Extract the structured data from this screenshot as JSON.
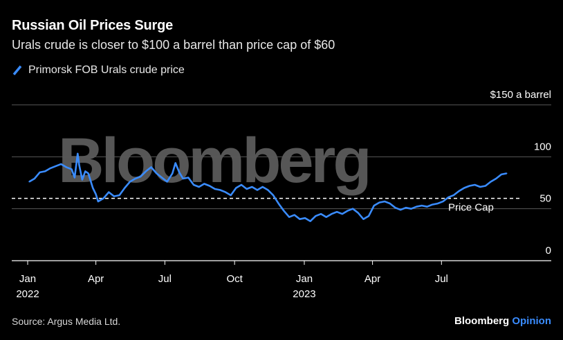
{
  "header": {
    "title": "Russian Oil Prices Surge",
    "subtitle": "Urals crude is closer to $100 a barrel than price cap of $60"
  },
  "legend": {
    "label": "Primorsk FOB Urals crude price"
  },
  "footer": {
    "source": "Source: Argus Media Ltd.",
    "brand_main": "Bloomberg",
    "brand_accent": "Opinion"
  },
  "watermark": "Bloomberg",
  "colors": {
    "series": "#3a8cff",
    "background": "#000000",
    "grid": "#5a5a5a",
    "cap_line": "#ffffff"
  },
  "chart_data": {
    "type": "line",
    "title": "Russian Oil Prices Surge",
    "subtitle": "Urals crude is closer to $100 a barrel than price cap of $60",
    "y_unit_label": "$150 a barrel",
    "ylim": [
      0,
      150
    ],
    "y_ticks": [
      0,
      50,
      100,
      150
    ],
    "y_tick_labels": [
      "0",
      "50",
      "100",
      "$150 a barrel"
    ],
    "xlim": [
      "2022-01-01",
      "2023-10-31"
    ],
    "x_ticks": [
      {
        "date": "2022-01-01",
        "label": "Jan",
        "sublabel": "2022"
      },
      {
        "date": "2022-04-01",
        "label": "Apr",
        "sublabel": ""
      },
      {
        "date": "2022-07-01",
        "label": "Jul",
        "sublabel": ""
      },
      {
        "date": "2022-10-01",
        "label": "Oct",
        "sublabel": ""
      },
      {
        "date": "2023-01-01",
        "label": "Jan",
        "sublabel": "2023"
      },
      {
        "date": "2023-04-01",
        "label": "Apr",
        "sublabel": ""
      },
      {
        "date": "2023-07-01",
        "label": "Jul",
        "sublabel": ""
      }
    ],
    "grid": true,
    "legend_position": "top-left",
    "reference_line": {
      "value": 60,
      "label": "Price Cap",
      "style": "dashed"
    },
    "series": [
      {
        "name": "Primorsk FOB Urals crude price",
        "color": "#3a8cff",
        "points": [
          [
            "2022-01-03",
            76
          ],
          [
            "2022-01-10",
            79
          ],
          [
            "2022-01-17",
            85
          ],
          [
            "2022-01-24",
            86
          ],
          [
            "2022-01-31",
            89
          ],
          [
            "2022-02-07",
            91
          ],
          [
            "2022-02-14",
            93
          ],
          [
            "2022-02-21",
            90
          ],
          [
            "2022-02-28",
            88
          ],
          [
            "2022-03-04",
            80
          ],
          [
            "2022-03-08",
            103
          ],
          [
            "2022-03-10",
            92
          ],
          [
            "2022-03-14",
            78
          ],
          [
            "2022-03-18",
            86
          ],
          [
            "2022-03-22",
            84
          ],
          [
            "2022-03-28",
            70
          ],
          [
            "2022-04-01",
            64
          ],
          [
            "2022-04-04",
            57
          ],
          [
            "2022-04-11",
            60
          ],
          [
            "2022-04-18",
            66
          ],
          [
            "2022-04-25",
            62
          ],
          [
            "2022-05-02",
            63
          ],
          [
            "2022-05-09",
            70
          ],
          [
            "2022-05-16",
            76
          ],
          [
            "2022-05-23",
            79
          ],
          [
            "2022-05-30",
            81
          ],
          [
            "2022-06-06",
            86
          ],
          [
            "2022-06-13",
            90
          ],
          [
            "2022-06-20",
            84
          ],
          [
            "2022-06-27",
            80
          ],
          [
            "2022-07-04",
            76
          ],
          [
            "2022-07-11",
            84
          ],
          [
            "2022-07-15",
            94
          ],
          [
            "2022-07-20",
            85
          ],
          [
            "2022-07-25",
            79
          ],
          [
            "2022-08-01",
            80
          ],
          [
            "2022-08-08",
            73
          ],
          [
            "2022-08-15",
            71
          ],
          [
            "2022-08-22",
            74
          ],
          [
            "2022-08-29",
            72
          ],
          [
            "2022-09-05",
            69
          ],
          [
            "2022-09-12",
            68
          ],
          [
            "2022-09-19",
            66
          ],
          [
            "2022-09-26",
            63
          ],
          [
            "2022-10-03",
            70
          ],
          [
            "2022-10-10",
            73
          ],
          [
            "2022-10-17",
            69
          ],
          [
            "2022-10-24",
            71
          ],
          [
            "2022-10-31",
            68
          ],
          [
            "2022-11-07",
            71
          ],
          [
            "2022-11-14",
            68
          ],
          [
            "2022-11-21",
            63
          ],
          [
            "2022-11-28",
            55
          ],
          [
            "2022-12-05",
            48
          ],
          [
            "2022-12-12",
            42
          ],
          [
            "2022-12-19",
            44
          ],
          [
            "2022-12-26",
            40
          ],
          [
            "2023-01-02",
            41
          ],
          [
            "2023-01-09",
            38
          ],
          [
            "2023-01-16",
            43
          ],
          [
            "2023-01-23",
            45
          ],
          [
            "2023-01-30",
            42
          ],
          [
            "2023-02-06",
            45
          ],
          [
            "2023-02-13",
            47
          ],
          [
            "2023-02-20",
            45
          ],
          [
            "2023-02-27",
            48
          ],
          [
            "2023-03-06",
            50
          ],
          [
            "2023-03-13",
            46
          ],
          [
            "2023-03-20",
            40
          ],
          [
            "2023-03-27",
            43
          ],
          [
            "2023-04-03",
            53
          ],
          [
            "2023-04-10",
            56
          ],
          [
            "2023-04-17",
            57
          ],
          [
            "2023-04-24",
            55
          ],
          [
            "2023-05-01",
            51
          ],
          [
            "2023-05-08",
            49
          ],
          [
            "2023-05-15",
            51
          ],
          [
            "2023-05-22",
            50
          ],
          [
            "2023-05-29",
            52
          ],
          [
            "2023-06-05",
            53
          ],
          [
            "2023-06-12",
            52
          ],
          [
            "2023-06-19",
            54
          ],
          [
            "2023-06-26",
            55
          ],
          [
            "2023-07-03",
            57
          ],
          [
            "2023-07-10",
            61
          ],
          [
            "2023-07-17",
            63
          ],
          [
            "2023-07-24",
            67
          ],
          [
            "2023-07-31",
            70
          ],
          [
            "2023-08-07",
            72
          ],
          [
            "2023-08-14",
            73
          ],
          [
            "2023-08-21",
            71
          ],
          [
            "2023-08-28",
            72
          ],
          [
            "2023-09-04",
            76
          ],
          [
            "2023-09-11",
            79
          ],
          [
            "2023-09-18",
            83
          ],
          [
            "2023-09-25",
            84
          ]
        ]
      }
    ]
  }
}
